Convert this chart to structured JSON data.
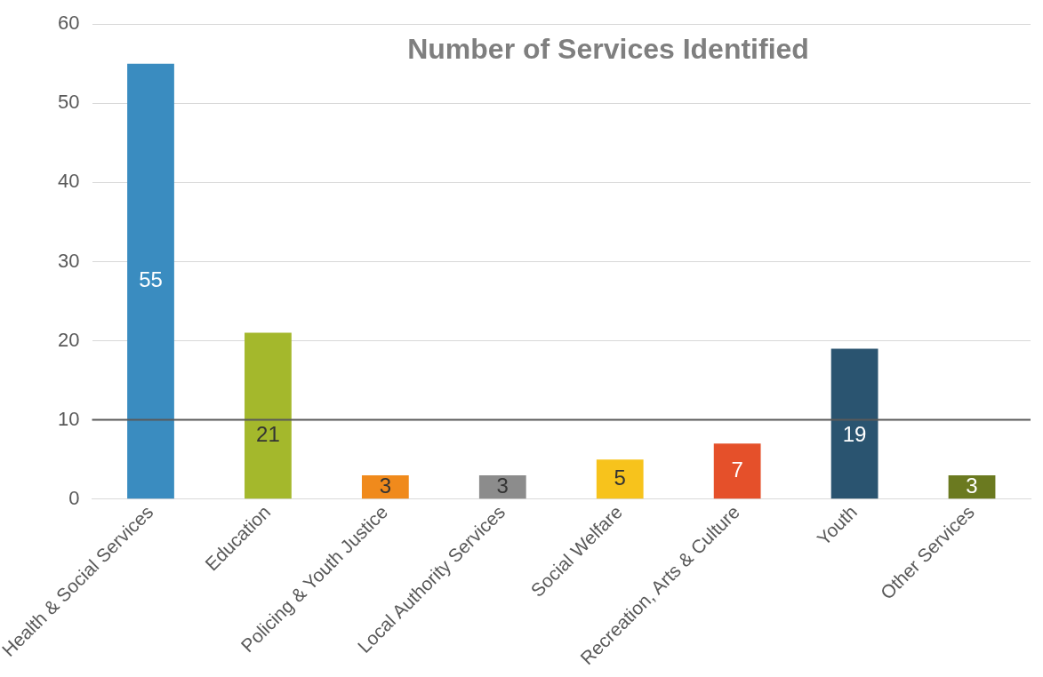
{
  "chart_data": {
    "type": "bar",
    "title": "Number of Services Identified",
    "categories": [
      "Health & Social Services",
      "Education",
      "Policing & Youth Justice",
      "Local Authority Services",
      "Social Welfare",
      "Recreation, Arts & Culture",
      "Youth",
      "Other Services"
    ],
    "values": [
      55,
      21,
      3,
      3,
      5,
      7,
      19,
      3
    ],
    "colors": [
      "#3a8cc0",
      "#a4b82c",
      "#f08a1c",
      "#8c8c8c",
      "#f7c31c",
      "#e5502a",
      "#2a5470",
      "#6b7a20"
    ],
    "ylim": [
      0,
      60
    ],
    "yticks": [
      0,
      10,
      20,
      30,
      40,
      50,
      60
    ],
    "grid": "y",
    "data_labels": true,
    "ref_lines": [
      {
        "axis": "y",
        "value": 10,
        "color": "#595959"
      }
    ]
  }
}
